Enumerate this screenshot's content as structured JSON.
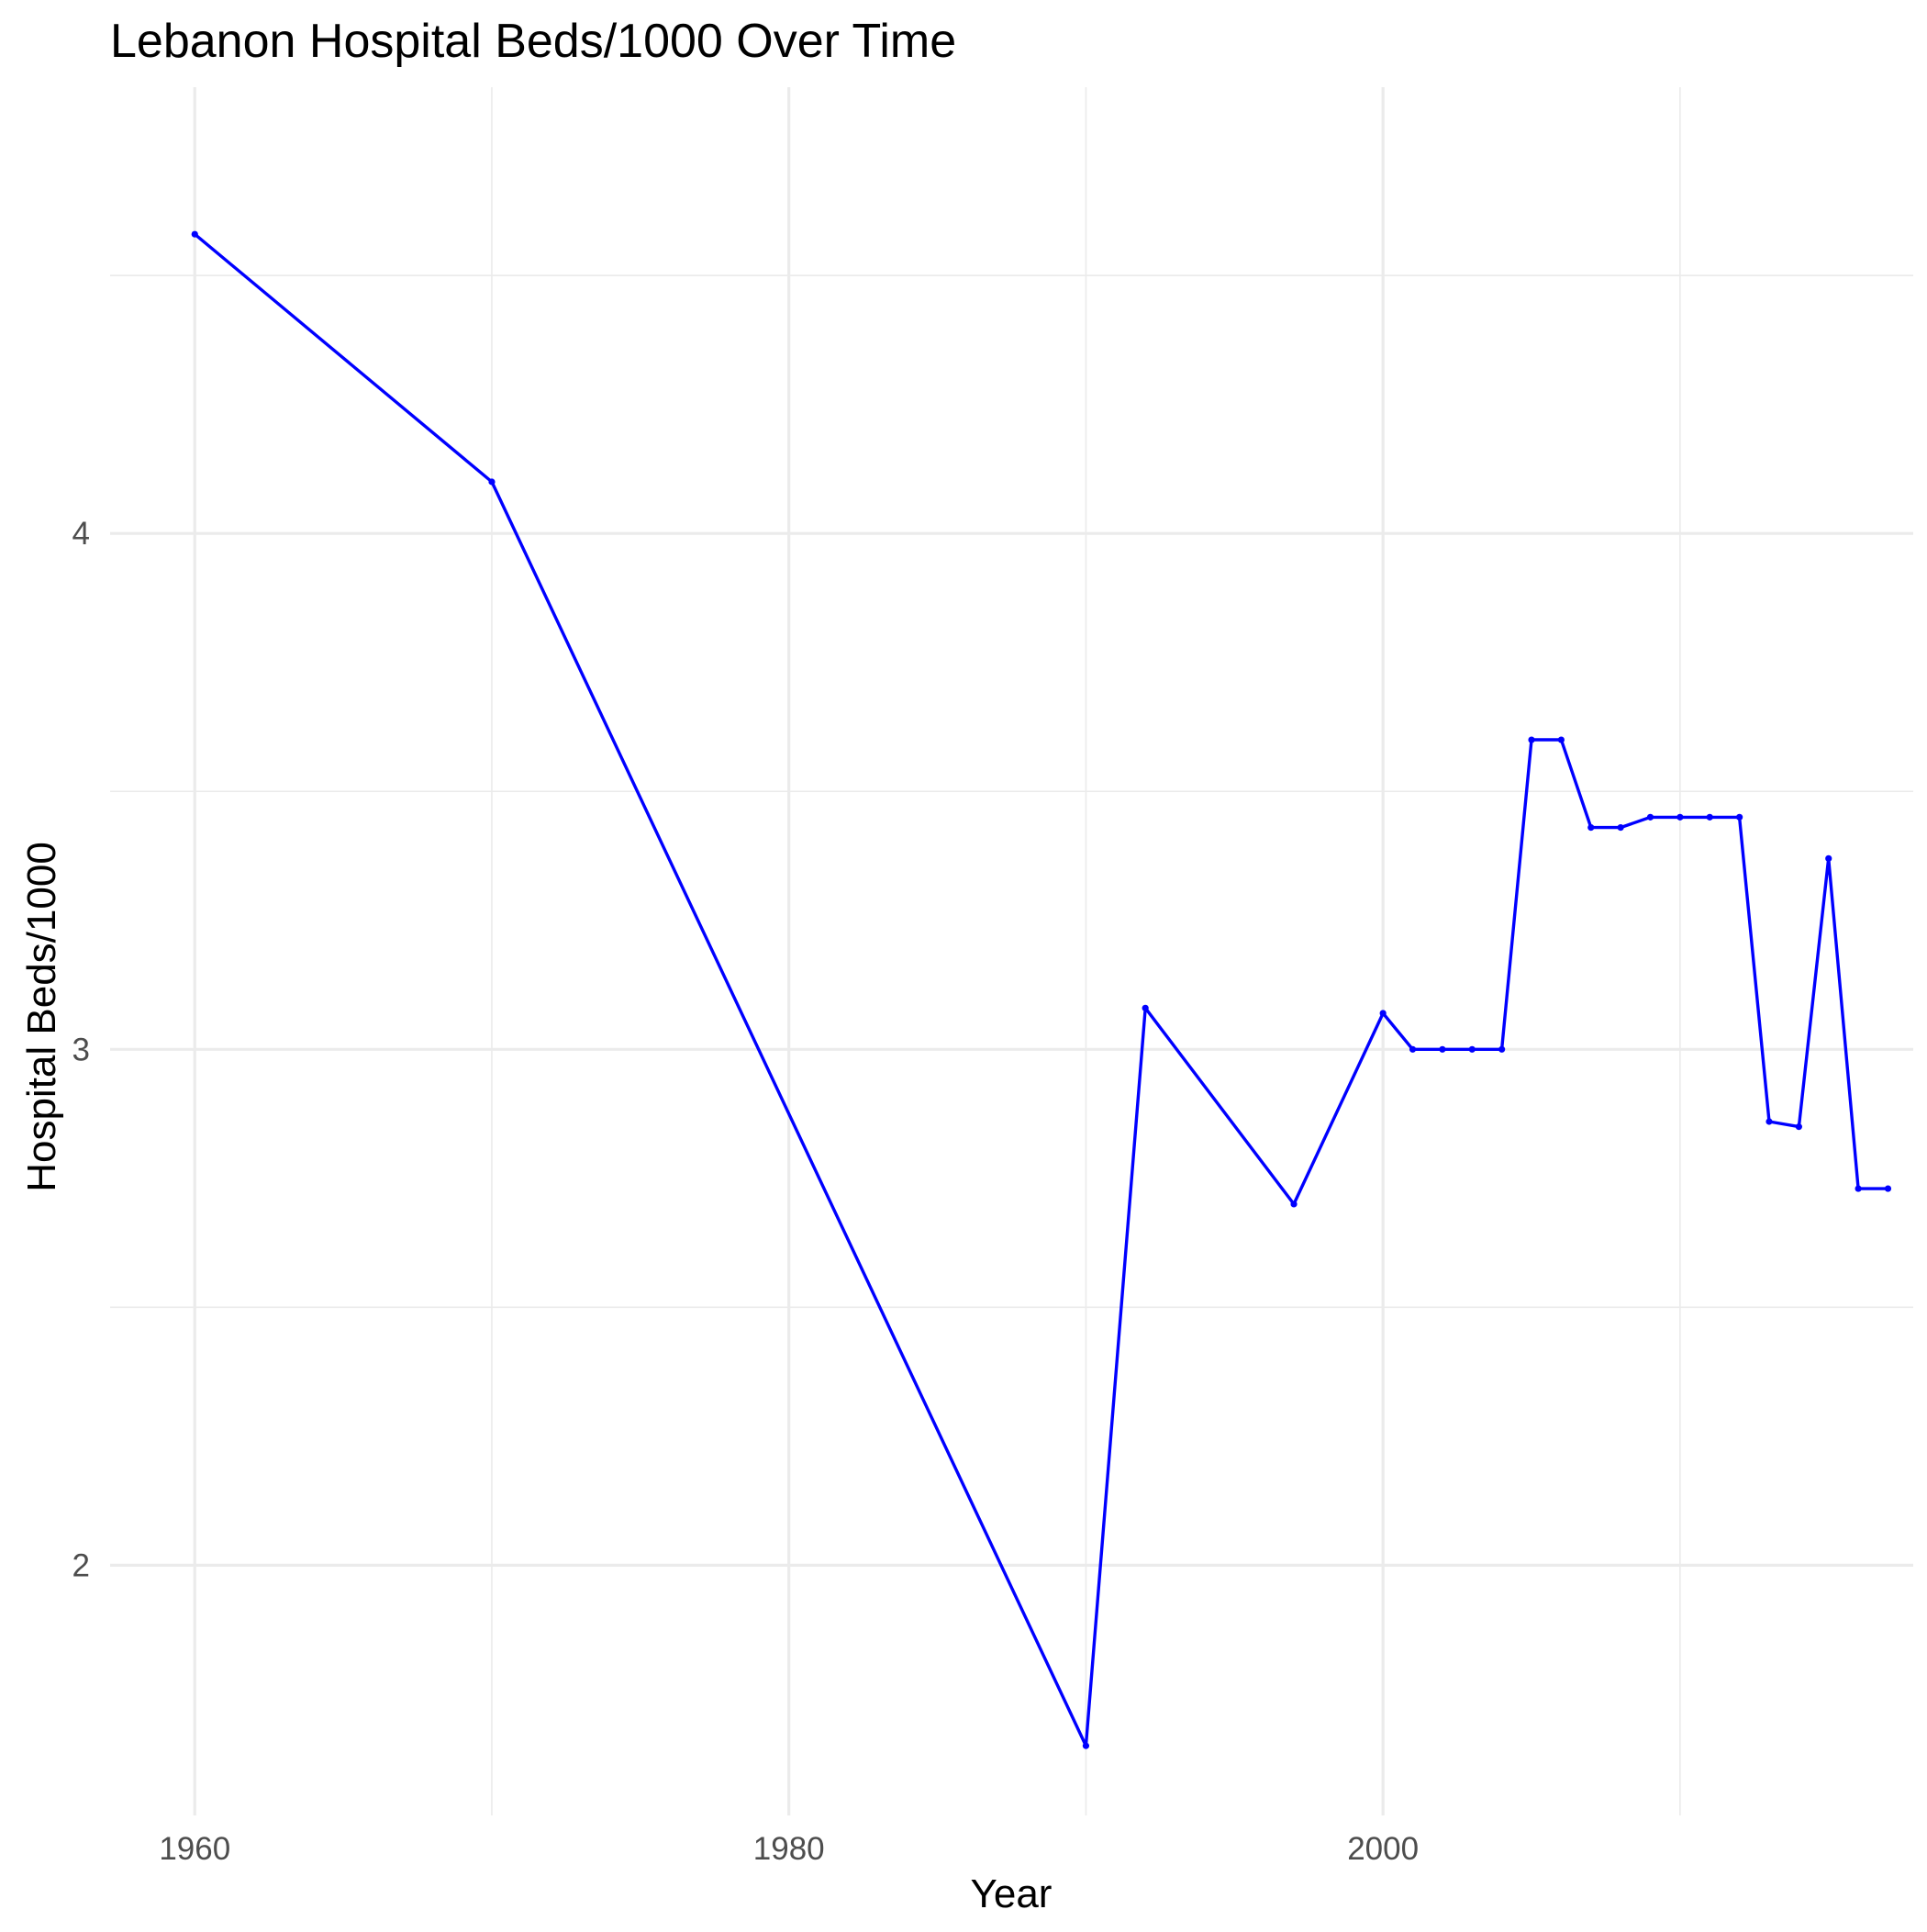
{
  "chart_data": {
    "type": "line",
    "title": "Lebanon Hospital Beds/1000 Over Time",
    "xlabel": "Year",
    "ylabel": "Hospital Beds/1000",
    "xlim": [
      1957.15,
      2017.85
    ],
    "ylim": [
      1.515,
      4.865
    ],
    "x_ticks": [
      1960,
      1980,
      2000
    ],
    "x_tick_labels": [
      "1960",
      "1980",
      "2000"
    ],
    "x_minor_ticks": [
      1970,
      1990,
      2010
    ],
    "y_ticks": [
      2,
      3,
      4
    ],
    "y_tick_labels": [
      "2",
      "3",
      "4"
    ],
    "y_minor_ticks": [
      2.5,
      3.5,
      4.5
    ],
    "grid": true,
    "legend": "none",
    "series": [
      {
        "color": "#0000ff",
        "x": [
          1960,
          1970,
          1990,
          1992,
          1997,
          2000,
          2001,
          2002,
          2003,
          2004,
          2005,
          2006,
          2007,
          2008,
          2009,
          2010,
          2011,
          2012,
          2013,
          2014,
          2015,
          2016,
          2017
        ],
        "y": [
          4.58,
          4.1,
          1.65,
          3.08,
          2.7,
          3.07,
          3.0,
          3.0,
          3.0,
          3.0,
          3.6,
          3.6,
          3.43,
          3.43,
          3.45,
          3.45,
          3.45,
          3.45,
          2.86,
          2.85,
          3.37,
          2.73,
          2.73
        ]
      }
    ]
  }
}
